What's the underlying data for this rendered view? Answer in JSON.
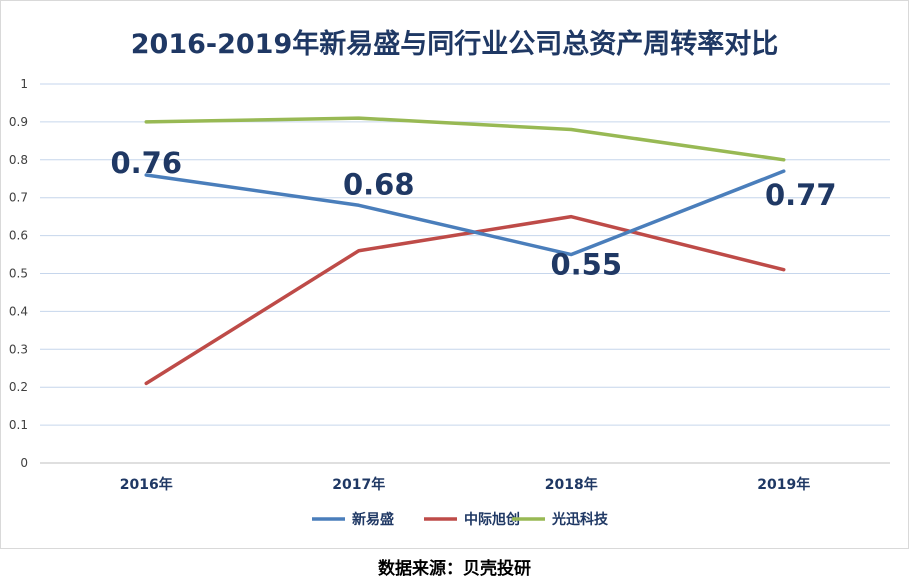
{
  "chart_data": {
    "type": "line",
    "title": "2016-2019年新易盛与同行业公司总资产周转率对比",
    "categories": [
      "2016年",
      "2017年",
      "2018年",
      "2019年"
    ],
    "ylim": [
      0,
      1
    ],
    "yticks": [
      "0",
      "0.1",
      "0.2",
      "0.3",
      "0.4",
      "0.5",
      "0.6",
      "0.7",
      "0.8",
      "0.9",
      "1"
    ],
    "grid": true,
    "legend_position": "bottom",
    "series": [
      {
        "name": "新易盛",
        "values": [
          0.76,
          0.68,
          0.55,
          0.77
        ],
        "color": "#4a7ebb",
        "data_labels": [
          "0.76",
          "0.68",
          "0.55",
          "0.77"
        ]
      },
      {
        "name": "中际旭创",
        "values": [
          0.21,
          0.56,
          0.65,
          0.51
        ],
        "color": "#be4b48"
      },
      {
        "name": "光迅科技",
        "values": [
          0.9,
          0.91,
          0.88,
          0.8
        ],
        "color": "#98b954"
      }
    ]
  },
  "source_text": "数据来源：贝壳投研"
}
